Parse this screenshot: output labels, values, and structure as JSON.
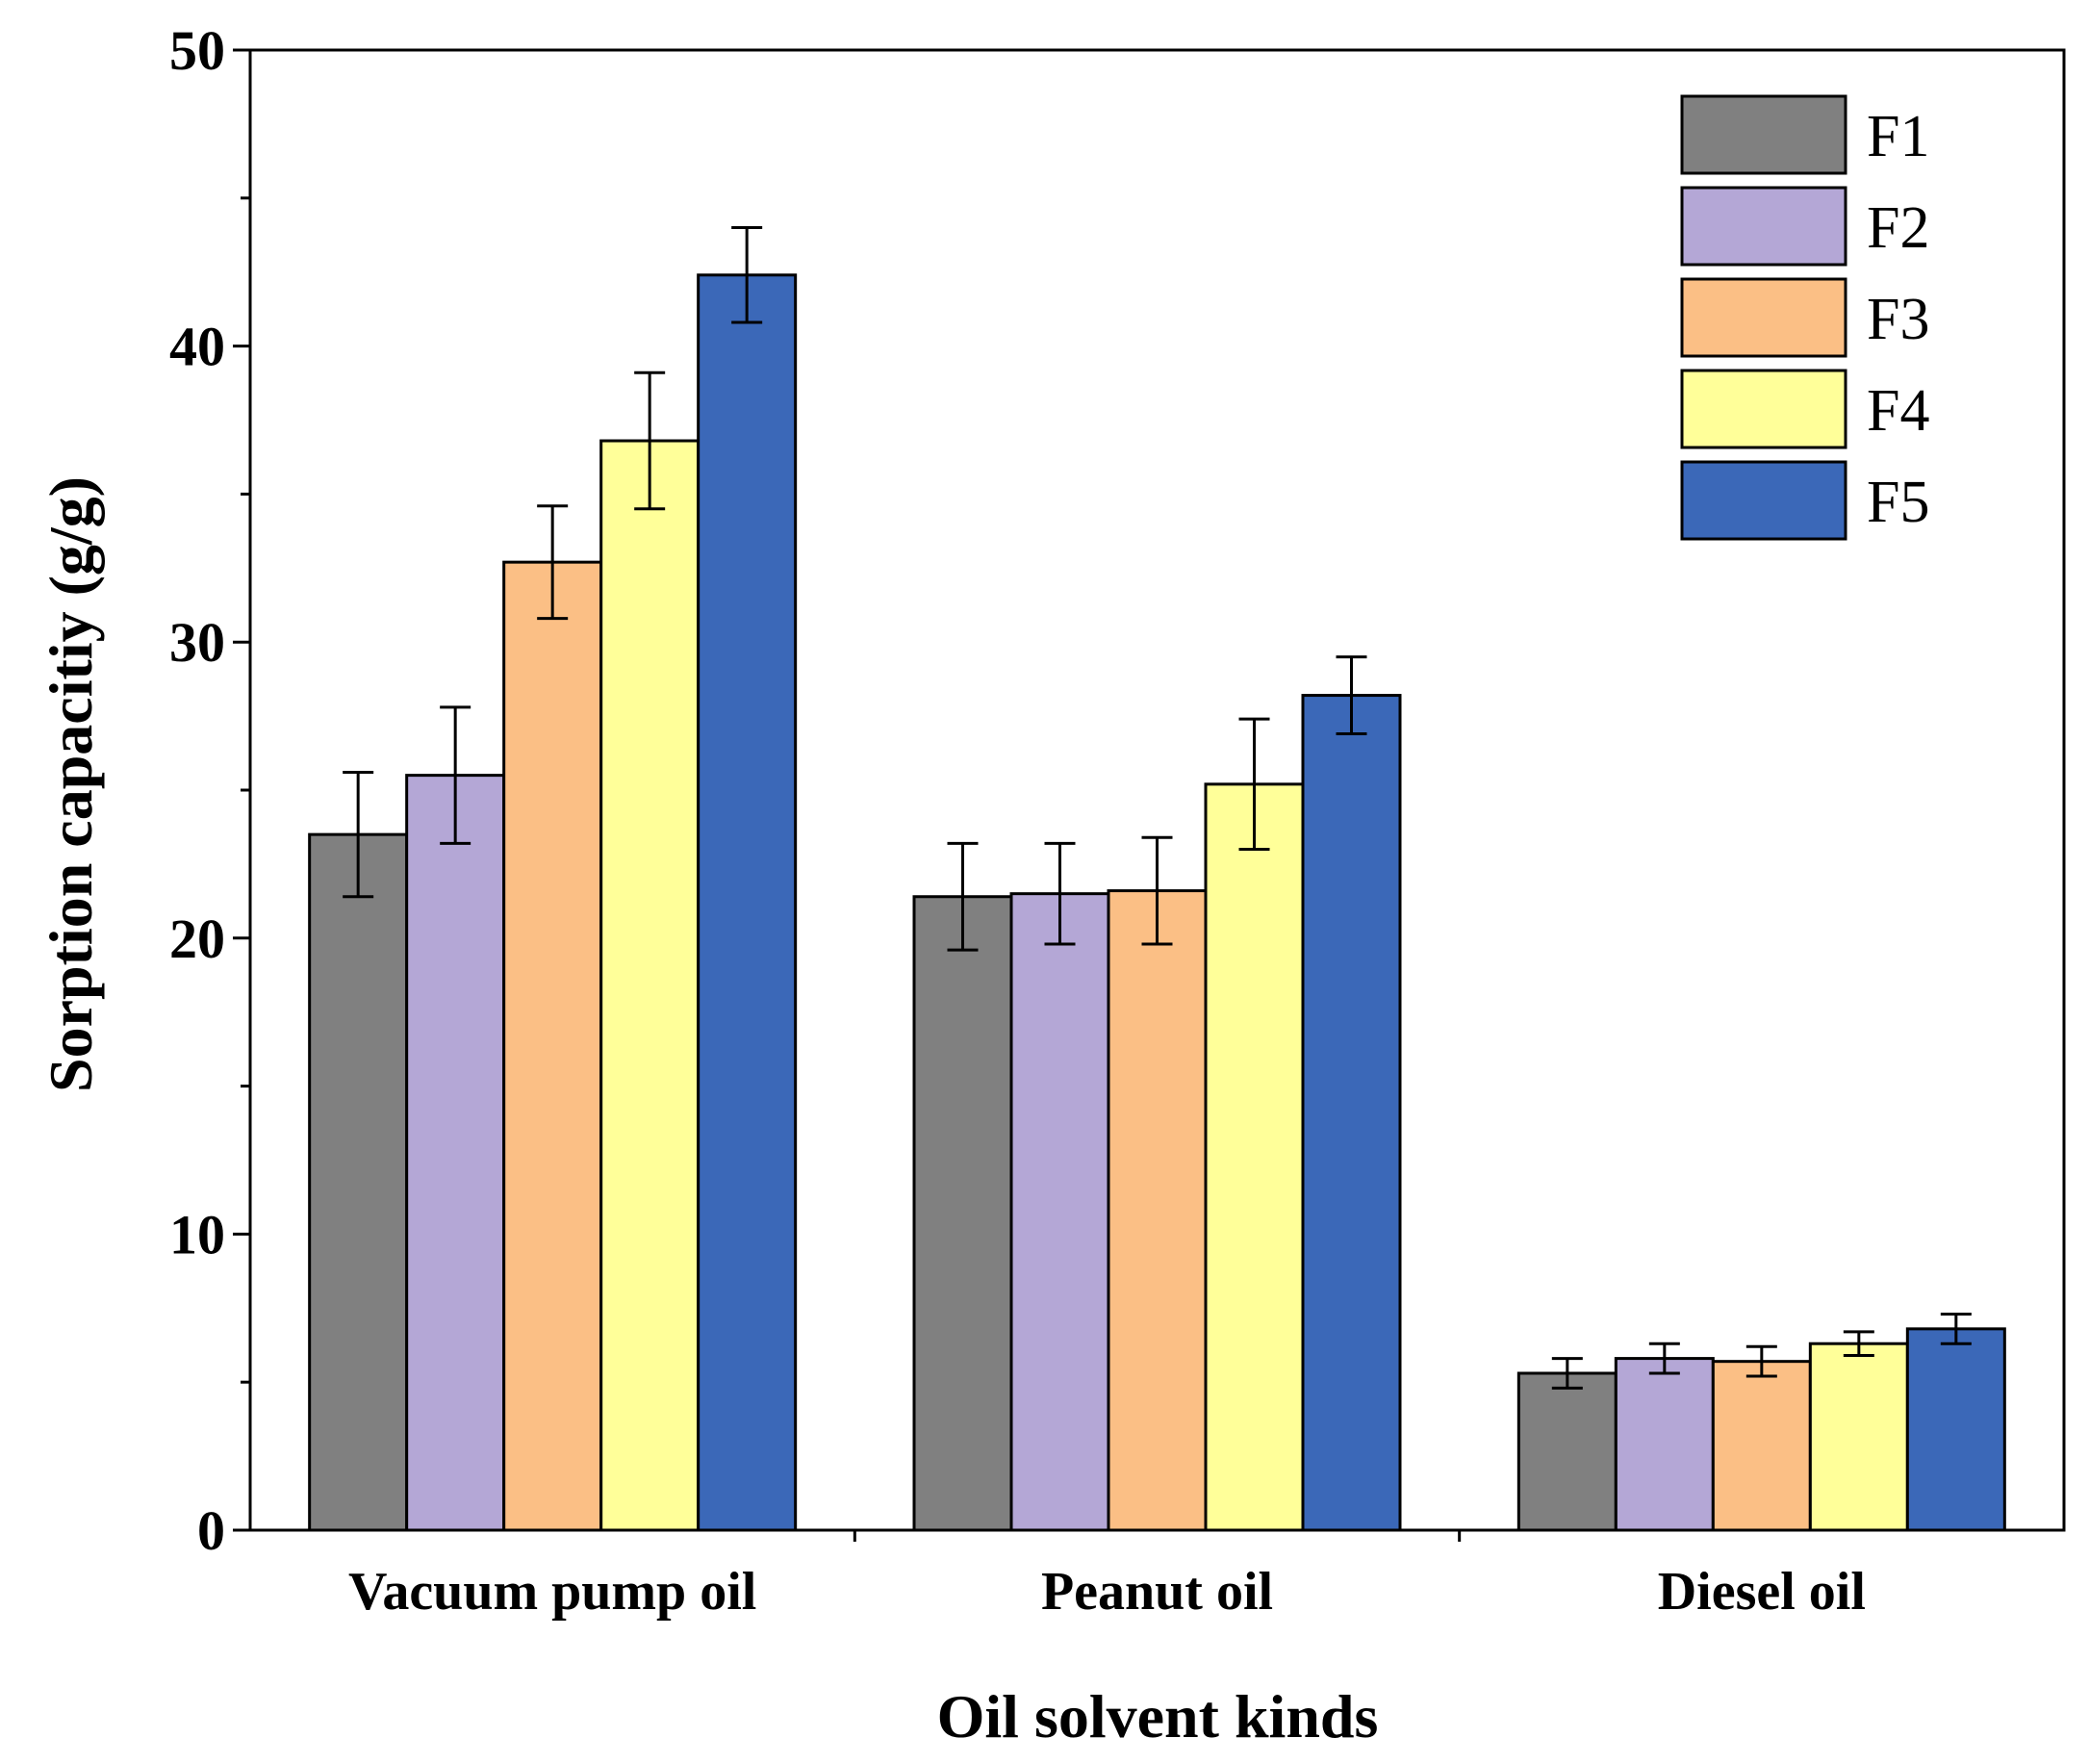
{
  "chart_data": {
    "type": "bar",
    "title": "",
    "xlabel": "Oil solvent kinds",
    "ylabel": "Sorption capacitiy (g/g)",
    "ylim": [
      0,
      50
    ],
    "yticks": [
      0,
      10,
      20,
      30,
      40,
      50
    ],
    "ytick_labels": [
      "0",
      "10",
      "20",
      "30",
      "40",
      "50"
    ],
    "grid": false,
    "legend_position": "top-right",
    "categories": [
      "Vacuum pump oil",
      "Peanut oil",
      "Diesel oil"
    ],
    "series": [
      {
        "name": "F1",
        "color": "#808080",
        "values": [
          23.5,
          21.4,
          5.3
        ],
        "errors": [
          2.1,
          1.8,
          0.5
        ]
      },
      {
        "name": "F2",
        "color": "#b4a7d6",
        "values": [
          25.5,
          21.5,
          5.8
        ],
        "errors": [
          2.3,
          1.7,
          0.5
        ]
      },
      {
        "name": "F3",
        "color": "#fbbf85",
        "values": [
          32.7,
          21.6,
          5.7
        ],
        "errors": [
          1.9,
          1.8,
          0.5
        ]
      },
      {
        "name": "F4",
        "color": "#ffff99",
        "values": [
          36.8,
          25.2,
          6.3
        ],
        "errors": [
          2.3,
          2.2,
          0.4
        ]
      },
      {
        "name": "F5",
        "color": "#3b68b8",
        "values": [
          42.4,
          28.2,
          6.8
        ],
        "errors": [
          1.6,
          1.3,
          0.5
        ]
      }
    ]
  }
}
